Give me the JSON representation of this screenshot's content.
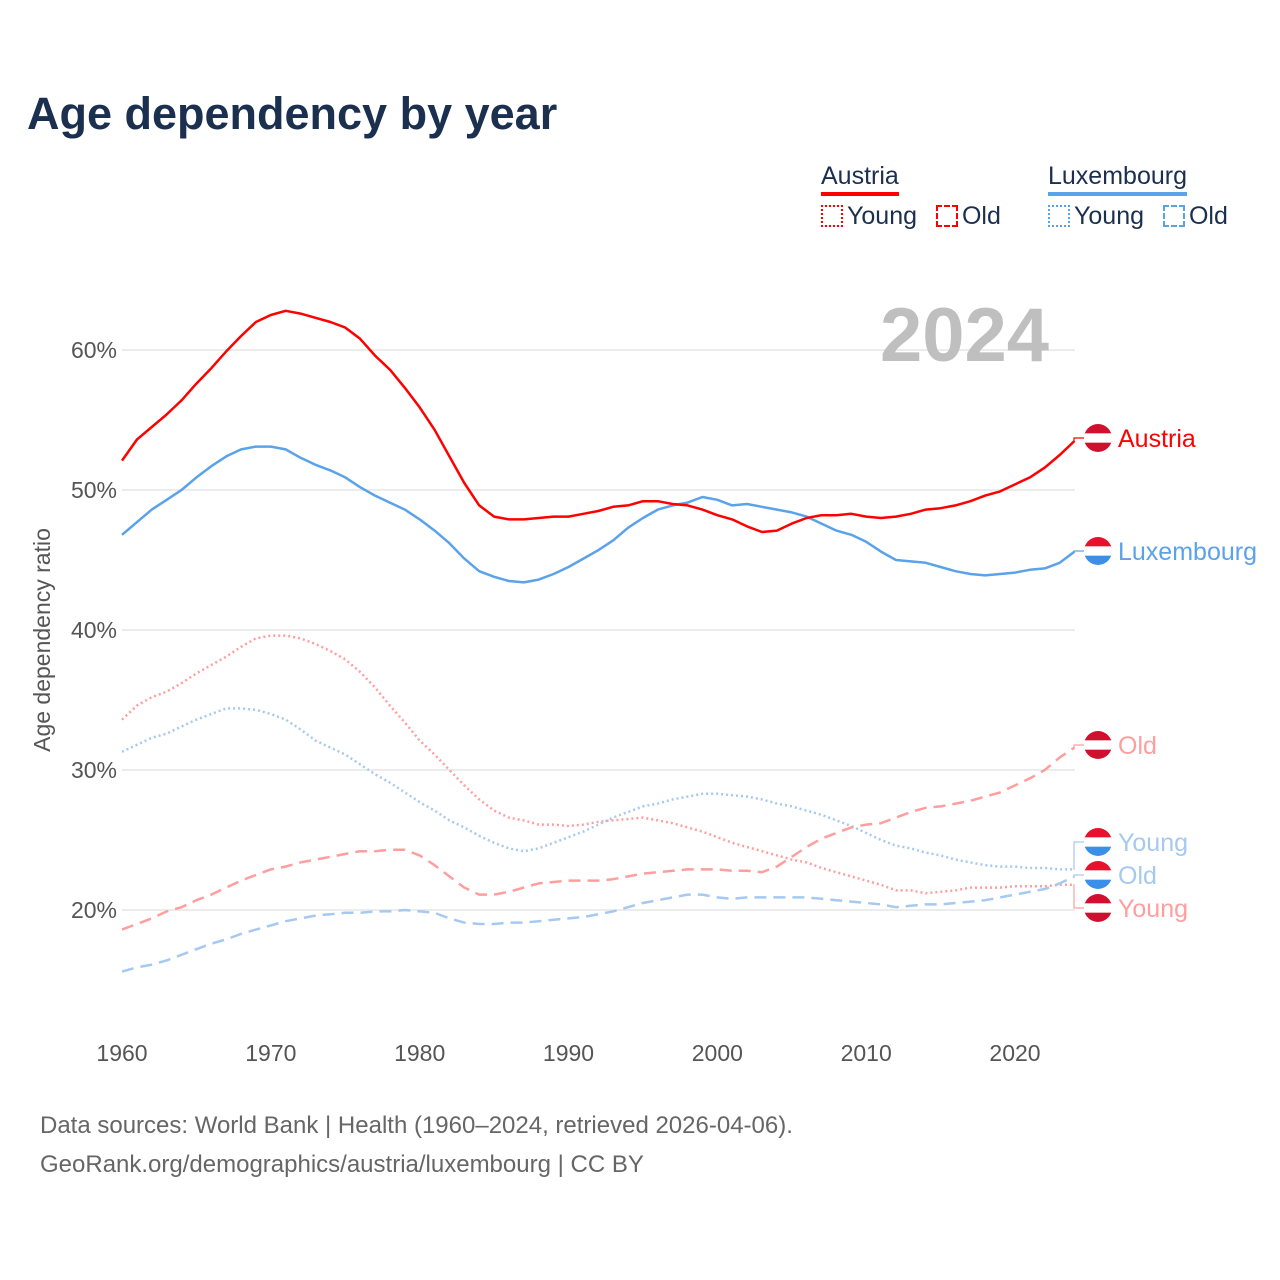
{
  "title": "Age dependency by year",
  "year_label": "2024",
  "legend": {
    "groups": [
      {
        "name": "Austria",
        "color": "#ff0000",
        "light": "#ff9e9e",
        "items": [
          "Young",
          "Old"
        ]
      },
      {
        "name": "Luxembourg",
        "color": "#5aa2ea",
        "light": "#a5c9f0",
        "items": [
          "Young",
          "Old"
        ]
      }
    ]
  },
  "source": {
    "line1": "Data sources: World Bank | Health (1960–2024, retrieved 2026-04-06).",
    "line2": "GeoRank.org/demographics/austria/luxembourg | CC BY"
  },
  "chart_data": {
    "type": "line",
    "title": "Age dependency by year",
    "xlabel": "",
    "ylabel": "Age dependency ratio",
    "xlim": [
      1960,
      2024
    ],
    "ylim": [
      15,
      63
    ],
    "x_ticks": [
      1960,
      1970,
      1980,
      1990,
      2000,
      2010,
      2020
    ],
    "x_tick_labels": [
      "1960",
      "1970",
      "1980",
      "1990",
      "2000",
      "2010",
      "2020"
    ],
    "y_ticks": [
      20,
      30,
      40,
      50,
      60
    ],
    "y_tick_labels": [
      "20%",
      "30%",
      "40%",
      "50%",
      "60%"
    ],
    "grid": "horizontal",
    "x_start": 1960,
    "series": [
      {
        "name": "Austria",
        "label": "Austria",
        "style": "solid",
        "color": "#ff0000",
        "label_color": "#ff0000",
        "values": [
          52.1,
          53.6,
          54.5,
          55.4,
          56.4,
          57.6,
          58.7,
          59.9,
          61.0,
          62.0,
          62.5,
          62.8,
          62.6,
          62.3,
          62.0,
          61.6,
          60.8,
          59.6,
          58.6,
          57.3,
          55.9,
          54.3,
          52.4,
          50.5,
          48.9,
          48.1,
          47.9,
          47.9,
          48.0,
          48.1,
          48.1,
          48.3,
          48.5,
          48.8,
          48.9,
          49.2,
          49.2,
          49.0,
          48.9,
          48.6,
          48.2,
          47.9,
          47.4,
          47.0,
          47.1,
          47.6,
          48.0,
          48.2,
          48.2,
          48.3,
          48.1,
          48.0,
          48.1,
          48.3,
          48.6,
          48.7,
          48.9,
          49.2,
          49.6,
          49.9,
          50.4,
          50.9,
          51.6,
          52.5,
          53.5
        ]
      },
      {
        "name": "Luxembourg",
        "label": "Luxembourg",
        "style": "solid",
        "color": "#5aa2ea",
        "label_color": "#5aa2ea",
        "values": [
          46.8,
          47.7,
          48.6,
          49.3,
          50.0,
          50.9,
          51.7,
          52.4,
          52.9,
          53.1,
          53.1,
          52.9,
          52.3,
          51.8,
          51.4,
          50.9,
          50.2,
          49.6,
          49.1,
          48.6,
          47.9,
          47.1,
          46.2,
          45.1,
          44.2,
          43.8,
          43.5,
          43.4,
          43.6,
          44.0,
          44.5,
          45.1,
          45.7,
          46.4,
          47.3,
          48.0,
          48.6,
          48.9,
          49.1,
          49.5,
          49.3,
          48.9,
          49.0,
          48.8,
          48.6,
          48.4,
          48.1,
          47.6,
          47.1,
          46.8,
          46.3,
          45.6,
          45.0,
          44.9,
          44.8,
          44.5,
          44.2,
          44.0,
          43.9,
          44.0,
          44.1,
          44.3,
          44.4,
          44.8,
          45.6
        ]
      },
      {
        "name": "Austria Young",
        "label": "Young",
        "style": "dotted",
        "color": "#ff9e9e",
        "label_color": "#ff9e9e",
        "values": [
          33.6,
          34.6,
          35.2,
          35.6,
          36.2,
          36.9,
          37.5,
          38.1,
          38.8,
          39.4,
          39.6,
          39.6,
          39.4,
          39.0,
          38.5,
          37.9,
          37.0,
          35.9,
          34.6,
          33.4,
          32.1,
          31.1,
          30.0,
          28.9,
          27.9,
          27.1,
          26.6,
          26.4,
          26.1,
          26.1,
          26.0,
          26.1,
          26.3,
          26.4,
          26.5,
          26.6,
          26.4,
          26.2,
          25.9,
          25.6,
          25.2,
          24.8,
          24.5,
          24.2,
          23.9,
          23.6,
          23.4,
          23.0,
          22.7,
          22.4,
          22.1,
          21.8,
          21.4,
          21.4,
          21.2,
          21.3,
          21.4,
          21.6,
          21.6,
          21.6,
          21.7,
          21.7,
          21.7,
          21.8,
          21.8
        ]
      },
      {
        "name": "Austria Old",
        "label": "Old",
        "style": "dashed",
        "color": "#ff9e9e",
        "label_color": "#ff9e9e",
        "values": [
          18.6,
          19.0,
          19.4,
          19.9,
          20.2,
          20.7,
          21.1,
          21.6,
          22.1,
          22.5,
          22.9,
          23.1,
          23.4,
          23.6,
          23.8,
          24.0,
          24.2,
          24.2,
          24.3,
          24.3,
          23.9,
          23.2,
          22.4,
          21.6,
          21.1,
          21.1,
          21.3,
          21.6,
          21.9,
          22.0,
          22.1,
          22.1,
          22.1,
          22.2,
          22.4,
          22.6,
          22.7,
          22.8,
          22.9,
          22.9,
          22.9,
          22.8,
          22.8,
          22.7,
          23.1,
          23.8,
          24.5,
          25.1,
          25.5,
          25.9,
          26.1,
          26.2,
          26.6,
          27.0,
          27.3,
          27.4,
          27.6,
          27.8,
          28.1,
          28.4,
          28.9,
          29.4,
          30.0,
          30.9,
          31.6
        ]
      },
      {
        "name": "Luxembourg Young",
        "label": "Young",
        "style": "dotted",
        "color": "#a5c9f0",
        "label_color": "#a5c9f0",
        "values": [
          31.3,
          31.8,
          32.3,
          32.6,
          33.1,
          33.6,
          34.0,
          34.4,
          34.4,
          34.3,
          34.0,
          33.6,
          32.9,
          32.1,
          31.6,
          31.1,
          30.4,
          29.7,
          29.1,
          28.4,
          27.7,
          27.1,
          26.4,
          25.9,
          25.3,
          24.8,
          24.4,
          24.2,
          24.4,
          24.8,
          25.2,
          25.6,
          26.1,
          26.6,
          27.0,
          27.4,
          27.6,
          27.9,
          28.1,
          28.3,
          28.3,
          28.2,
          28.1,
          27.9,
          27.6,
          27.4,
          27.1,
          26.8,
          26.4,
          26.0,
          25.5,
          25.0,
          24.6,
          24.4,
          24.1,
          23.9,
          23.6,
          23.4,
          23.2,
          23.1,
          23.1,
          23.0,
          23.0,
          22.9,
          22.9
        ]
      },
      {
        "name": "Luxembourg Old",
        "label": "Old",
        "style": "dashed",
        "color": "#a5c9f0",
        "label_color": "#a5c9f0",
        "values": [
          15.6,
          15.9,
          16.1,
          16.4,
          16.8,
          17.2,
          17.6,
          17.9,
          18.3,
          18.6,
          18.9,
          19.2,
          19.4,
          19.6,
          19.7,
          19.8,
          19.8,
          19.9,
          19.9,
          20.0,
          19.9,
          19.8,
          19.4,
          19.1,
          19.0,
          19.0,
          19.1,
          19.1,
          19.2,
          19.3,
          19.4,
          19.5,
          19.7,
          19.9,
          20.2,
          20.5,
          20.7,
          20.9,
          21.1,
          21.1,
          20.9,
          20.8,
          20.9,
          20.9,
          20.9,
          20.9,
          20.9,
          20.8,
          20.7,
          20.6,
          20.5,
          20.4,
          20.2,
          20.3,
          20.4,
          20.4,
          20.5,
          20.6,
          20.7,
          20.9,
          21.1,
          21.3,
          21.5,
          21.9,
          22.4
        ]
      }
    ]
  }
}
